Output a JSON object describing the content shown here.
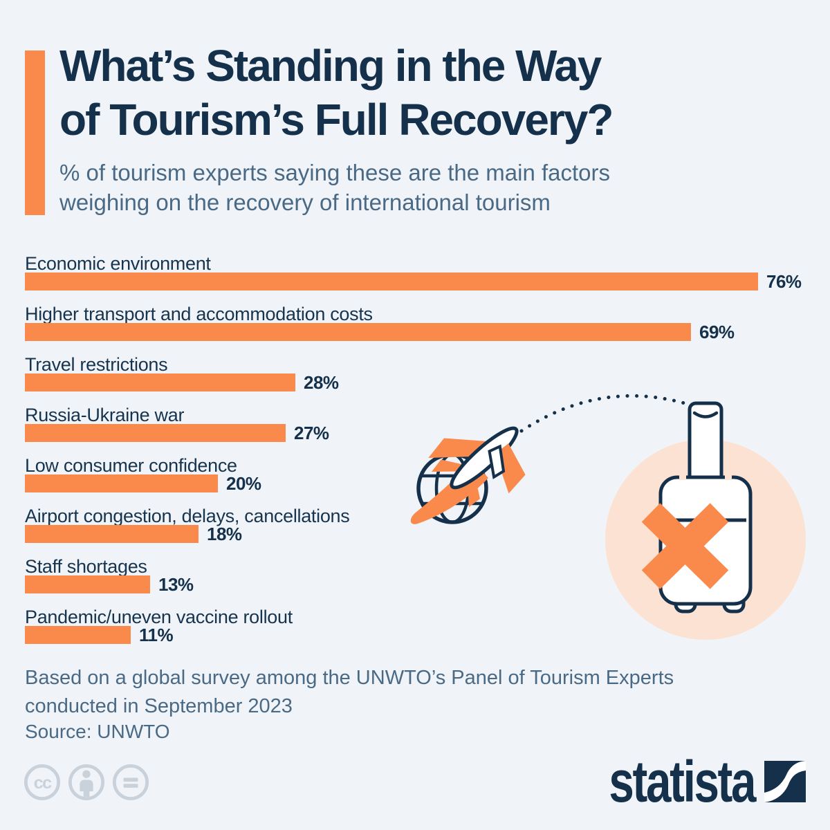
{
  "header": {
    "title_lines": [
      "What’s Standing in the Way",
      "of Tourism’s Full Recovery?"
    ],
    "subtitle_lines": [
      "% of tourism experts saying these are the main factors",
      "weighing on the recovery of international tourism"
    ]
  },
  "chart_data": {
    "type": "bar",
    "orientation": "horizontal",
    "unit": "%",
    "categories": [
      "Economic environment",
      "Higher transport and accommodation costs",
      "Travel restrictions",
      "Russia-Ukraine war",
      "Low consumer confidence",
      "Airport congestion, delays, cancellations",
      "Staff shortages",
      "Pandemic/uneven vaccine rollout"
    ],
    "values": [
      76,
      69,
      28,
      27,
      20,
      18,
      13,
      11
    ],
    "display_values": [
      "76%",
      "69%",
      "28%",
      "27%",
      "20%",
      "18%",
      "13%",
      "11%"
    ],
    "title": "What’s Standing in the Way of Tourism’s Full Recovery?",
    "xlabel": "",
    "ylabel": "",
    "xlim": [
      0,
      80
    ],
    "grid": false,
    "legend": false,
    "bar_color": "#F98A4C",
    "value_labels": "end-of-bar"
  },
  "illustration": {
    "description": "airplane flying around globe with dotted flight path to a crossed-out suitcase",
    "icons": [
      "globe-icon",
      "airplane-icon",
      "flight-path-dotted-line",
      "suitcase-icon",
      "x-mark-icon"
    ]
  },
  "footer": {
    "note_lines": [
      "Based on a global survey among the UNWTO’s Panel of Tourism Experts",
      "conducted in September 2023"
    ],
    "source": "Source: UNWTO"
  },
  "license": {
    "icons": [
      "cc-icon",
      "cc-by-person-icon",
      "cc-nd-equals-icon"
    ]
  },
  "branding": {
    "logo_text": "statista"
  },
  "colors": {
    "background": "#F0F4F8",
    "navy": "#14304A",
    "slate_text": "#4A6985",
    "orange": "#F98A4C",
    "peach_circle": "#FCE2D2",
    "license_gray": "#C9D2DB"
  }
}
